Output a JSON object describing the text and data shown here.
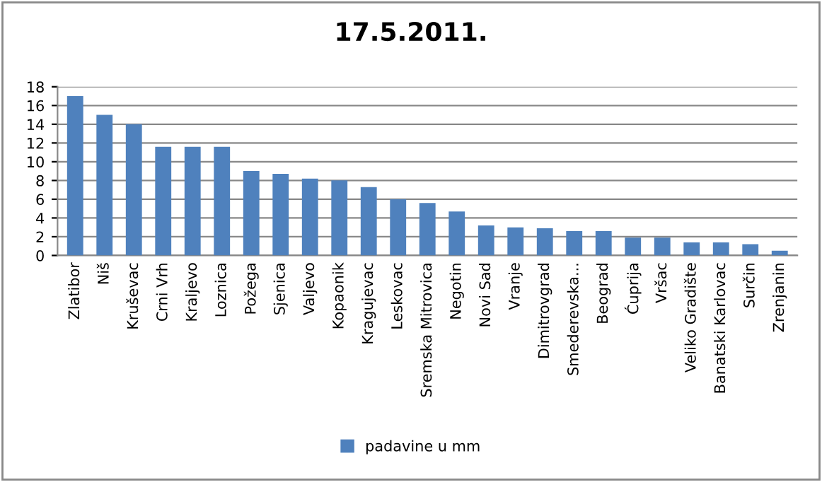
{
  "chart_data": {
    "type": "bar",
    "title": "17.5.2011.",
    "categories": [
      "Zlatibor",
      "Niš",
      "Kruševac",
      "Crni Vrh",
      "Kraljevo",
      "Loznica",
      "Požega",
      "Sjenica",
      "Valjevo",
      "Kopaonik",
      "Kragujevac",
      "Leskovac",
      "Sremska Mitrovica",
      "Negotin",
      "Novi Sad",
      "Vranje",
      "Dimitrovgrad",
      "Smederevska...",
      "Beograd",
      "Ćuprija",
      "Vršac",
      "Veliko Gradište",
      "Banatski Karlovac",
      "Surčin",
      "Zrenjanin"
    ],
    "series": [
      {
        "name": "padavine u mm",
        "color": "#4f81bd",
        "values": [
          17,
          15,
          14,
          11.6,
          11.6,
          11.6,
          9,
          8.7,
          8.2,
          8,
          7.3,
          6,
          5.6,
          4.7,
          3.2,
          3.0,
          2.9,
          2.6,
          2.6,
          1.9,
          1.9,
          1.4,
          1.4,
          1.2,
          0.5
        ]
      }
    ],
    "ylim": [
      0,
      18
    ],
    "yticks": [
      0,
      2,
      4,
      6,
      8,
      10,
      12,
      14,
      16,
      18
    ],
    "grid": "y",
    "legend": "bottom"
  }
}
